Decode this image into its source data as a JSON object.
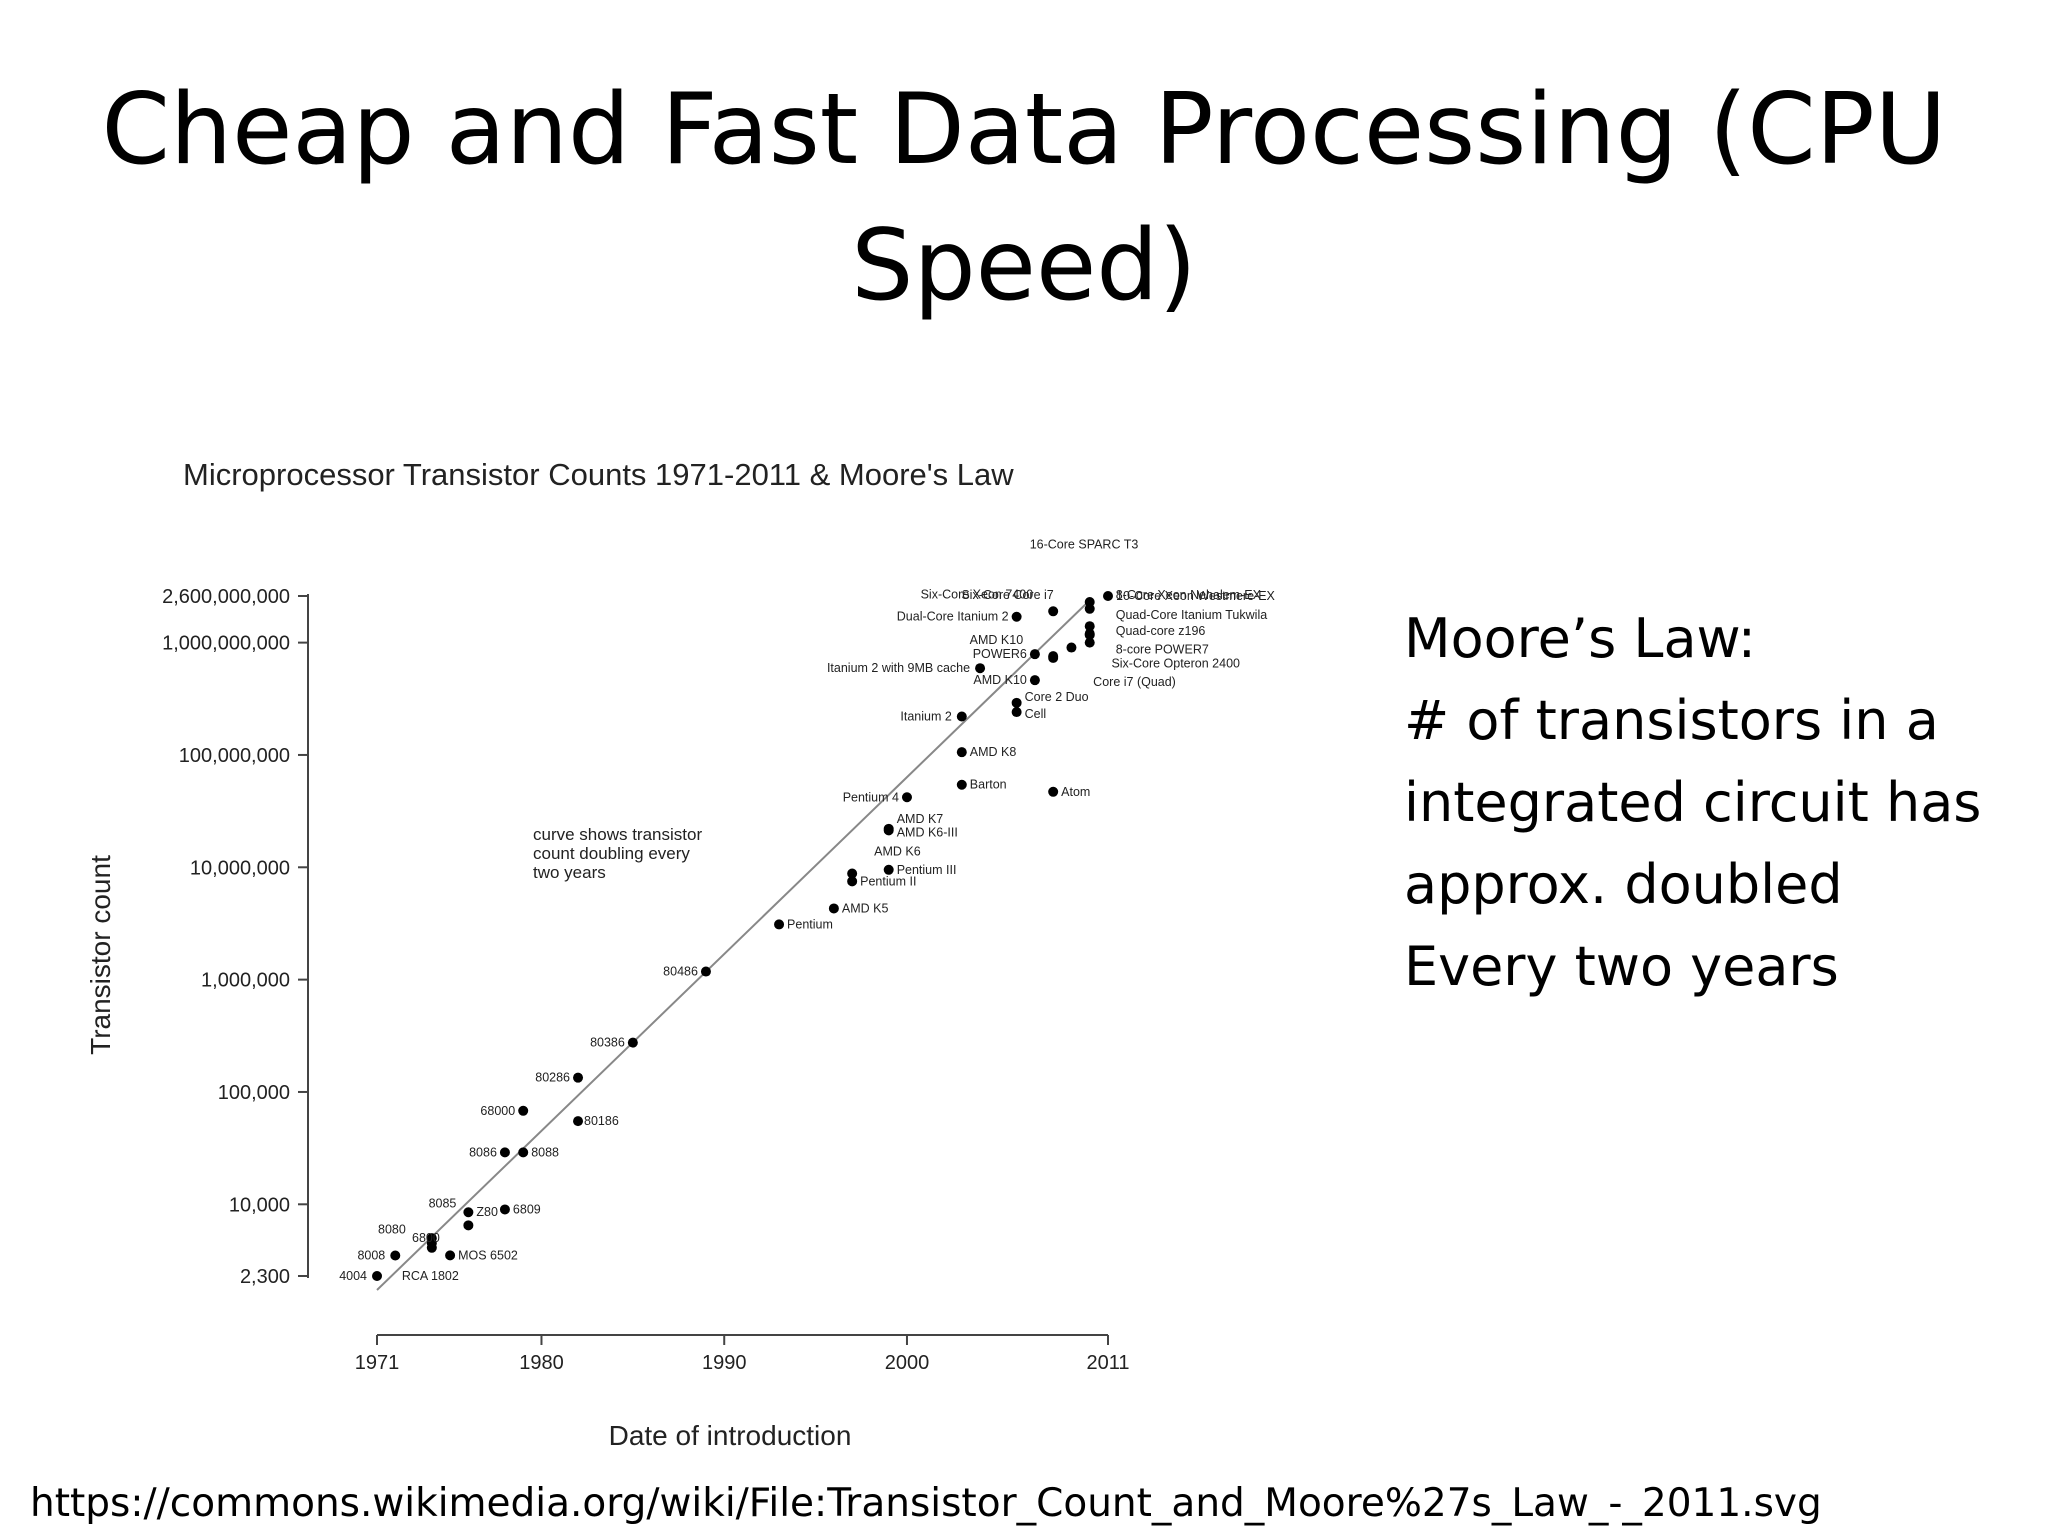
{
  "slide": {
    "title_line1": "Cheap and Fast Data Processing (CPU",
    "title_line2": "Speed)",
    "side_lines": [
      "Moore’s Law:",
      "# of transistors in a",
      "integrated circuit has",
      "approx. doubled",
      "Every two years"
    ],
    "source_url": "https://commons.wikimedia.org/wiki/File:Transistor_Count_and_Moore%27s_Law_-_2011.svg"
  },
  "chart_data": {
    "type": "scatter",
    "title": "Microprocessor Transistor Counts 1971-2011 & Moore's Law",
    "xlabel": "Date of introduction",
    "ylabel": "Transistor count",
    "x_scale": "linear",
    "y_scale": "log",
    "xlim": [
      1971,
      2011
    ],
    "ylim": [
      2300,
      2600000000
    ],
    "x_ticks": [
      {
        "value": 1971,
        "label": "1971"
      },
      {
        "value": 1980,
        "label": "1980"
      },
      {
        "value": 1990,
        "label": "1990"
      },
      {
        "value": 2000,
        "label": "2000"
      },
      {
        "value": 2011,
        "label": "2011"
      }
    ],
    "y_ticks": [
      {
        "value": 2300,
        "label": "2,300"
      },
      {
        "value": 10000,
        "label": "10,000"
      },
      {
        "value": 100000,
        "label": "100,000"
      },
      {
        "value": 1000000,
        "label": "1,000,000"
      },
      {
        "value": 10000000,
        "label": "10,000,000"
      },
      {
        "value": 100000000,
        "label": "100,000,000"
      },
      {
        "value": 1000000000,
        "label": "1,000,000,000"
      },
      {
        "value": 2600000000,
        "label": "2,600,000,000"
      }
    ],
    "annotation": [
      "curve shows transistor",
      "count doubling every",
      "two years"
    ],
    "trend_line": {
      "x": [
        1971,
        2011
      ],
      "y": [
        2300,
        2300000000
      ]
    },
    "grid": false,
    "points": [
      {
        "name": "4004",
        "x": 1971,
        "y": 2300
      },
      {
        "name": "8008",
        "x": 1972,
        "y": 3500
      },
      {
        "name": "8080",
        "x": 1974,
        "y": 4500
      },
      {
        "name": "RCA 1802",
        "x": 1974,
        "y": 5000
      },
      {
        "name": "MOS 6502",
        "x": 1975,
        "y": 3510
      },
      {
        "name": "6800",
        "x": 1974,
        "y": 4100
      },
      {
        "name": "8085",
        "x": 1976,
        "y": 6500
      },
      {
        "name": "Z80",
        "x": 1976,
        "y": 8500
      },
      {
        "name": "6809",
        "x": 1978,
        "y": 9000
      },
      {
        "name": "8086",
        "x": 1978,
        "y": 29000
      },
      {
        "name": "8088",
        "x": 1979,
        "y": 29000
      },
      {
        "name": "68000",
        "x": 1979,
        "y": 68000
      },
      {
        "name": "80186",
        "x": 1982,
        "y": 55000
      },
      {
        "name": "80286",
        "x": 1982,
        "y": 134000
      },
      {
        "name": "80386",
        "x": 1985,
        "y": 275000
      },
      {
        "name": "80486",
        "x": 1989,
        "y": 1180000
      },
      {
        "name": "Pentium",
        "x": 1993,
        "y": 3100000
      },
      {
        "name": "AMD K5",
        "x": 1996,
        "y": 4300000
      },
      {
        "name": "Pentium II",
        "x": 1997,
        "y": 7500000
      },
      {
        "name": "AMD K6",
        "x": 1997,
        "y": 8800000
      },
      {
        "name": "Pentium III",
        "x": 1999,
        "y": 9500000
      },
      {
        "name": "AMD K6-III",
        "x": 1999,
        "y": 21300000
      },
      {
        "name": "AMD K7",
        "x": 1999,
        "y": 22000000
      },
      {
        "name": "Pentium 4",
        "x": 2000,
        "y": 42000000
      },
      {
        "name": "Barton",
        "x": 2003,
        "y": 54300000
      },
      {
        "name": "AMD K8",
        "x": 2003,
        "y": 105900000
      },
      {
        "name": "Itanium 2",
        "x": 2003,
        "y": 220000000
      },
      {
        "name": "Atom",
        "x": 2008,
        "y": 47000000
      },
      {
        "name": "Cell",
        "x": 2006,
        "y": 241000000
      },
      {
        "name": "Core 2 Duo",
        "x": 2006,
        "y": 291000000
      },
      {
        "name": "AMD K10",
        "x": 2007,
        "y": 463000000
      },
      {
        "name": "Itanium 2 with 9MB cache",
        "x": 2004,
        "y": 592000000
      },
      {
        "name": "Core i7 (Quad)",
        "x": 2008,
        "y": 731000000
      },
      {
        "name": "POWER6",
        "x": 2007,
        "y": 789000000
      },
      {
        "name": "AMD K10",
        "x": 2008,
        "y": 758000000
      },
      {
        "name": "Six-Core Opteron 2400",
        "x": 2009,
        "y": 904000000
      },
      {
        "name": "8-Core Xeon Nehalem-EX",
        "x": 2010,
        "y": 2300000000
      },
      {
        "name": "Quad-Core Itanium Tukwila",
        "x": 2010,
        "y": 2000000000
      },
      {
        "name": "Quad-core z196",
        "x": 2010,
        "y": 1400000000
      },
      {
        "name": "8-core POWER7",
        "x": 2010,
        "y": 1200000000
      },
      {
        "name": "Dual-Core Itanium 2",
        "x": 2006,
        "y": 1700000000
      },
      {
        "name": "Six-Core Xeon 7400",
        "x": 2008,
        "y": 1900000000
      },
      {
        "name": "Six-Core Core i7",
        "x": 2010,
        "y": 1170000000
      },
      {
        "name": "16-Core SPARC T3",
        "x": 2010,
        "y": 1000000000
      },
      {
        "name": "10-Core Xeon Westmere-EX",
        "x": 2011,
        "y": 2600000000
      }
    ]
  }
}
